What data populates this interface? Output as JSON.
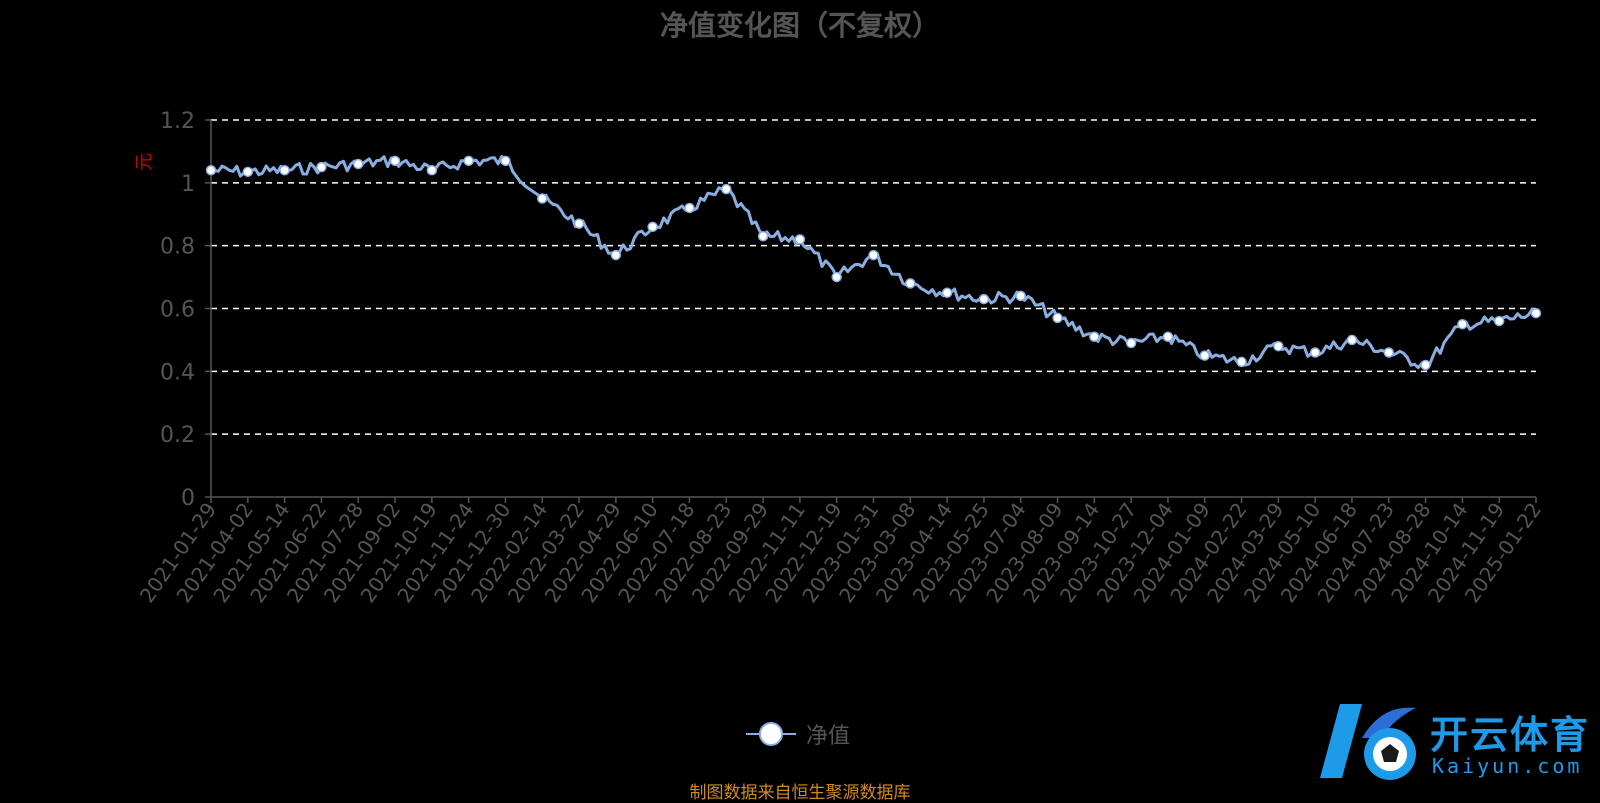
{
  "title": "净值变化图（不复权）",
  "legend_label": "净值",
  "source_text": "制图数据来自恒生聚源数据库",
  "logo": {
    "brand": "开云体育",
    "domain": "Kaiyun.com"
  },
  "colors": {
    "line": "#8aaee0",
    "grid": "#ffffff",
    "axis": "#555555",
    "unit": "#cc0000",
    "source": "#d08a1e",
    "logo": "#1e9be8"
  },
  "chart_data": {
    "type": "line",
    "title": "净值变化图（不复权）",
    "ylabel": "元",
    "ylim": [
      0,
      1.2
    ],
    "yticks": [
      "0",
      "0.2",
      "0.4",
      "0.6",
      "0.8",
      "1",
      "1.2"
    ],
    "grid": true,
    "legend_position": "bottom",
    "categories": [
      "2021-01-29",
      "2021-04-02",
      "2021-05-14",
      "2021-06-22",
      "2021-07-28",
      "2021-09-02",
      "2021-10-19",
      "2021-11-24",
      "2021-12-30",
      "2022-02-14",
      "2022-03-22",
      "2022-04-29",
      "2022-06-10",
      "2022-07-18",
      "2022-08-23",
      "2022-09-29",
      "2022-11-11",
      "2022-12-19",
      "2023-01-31",
      "2023-03-08",
      "2023-04-14",
      "2023-05-25",
      "2023-07-04",
      "2023-08-09",
      "2023-09-14",
      "2023-10-27",
      "2023-12-04",
      "2024-01-09",
      "2024-02-22",
      "2024-03-29",
      "2024-05-10",
      "2024-06-18",
      "2024-07-23",
      "2024-08-28",
      "2024-10-14",
      "2024-11-19",
      "2025-01-22"
    ],
    "series": [
      {
        "name": "净值",
        "values": [
          1.04,
          1.035,
          1.04,
          1.05,
          1.06,
          1.07,
          1.04,
          1.07,
          1.07,
          0.95,
          0.87,
          0.77,
          0.86,
          0.92,
          0.98,
          0.83,
          0.82,
          0.7,
          0.77,
          0.68,
          0.65,
          0.63,
          0.64,
          0.57,
          0.51,
          0.49,
          0.51,
          0.45,
          0.43,
          0.48,
          0.46,
          0.5,
          0.46,
          0.42,
          0.55,
          0.56,
          0.585
        ]
      }
    ]
  }
}
